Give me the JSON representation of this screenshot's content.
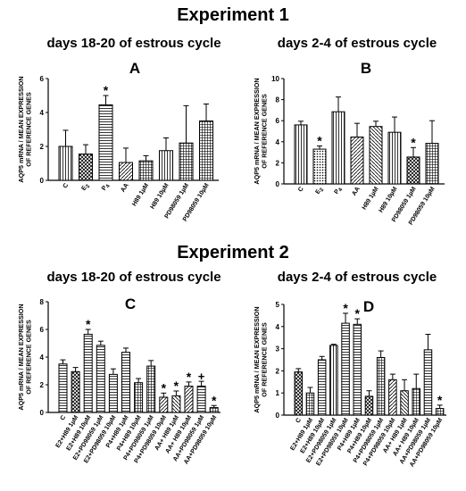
{
  "experiments": [
    {
      "title": "Experiment 1"
    },
    {
      "title": "Experiment 2"
    }
  ],
  "colors": {
    "bar_fill": "#ffffff",
    "bar_stroke": "#000000",
    "axis": "#000000"
  },
  "chart_data": [
    {
      "type": "bar",
      "panel": "A",
      "title": "days 18-20 of estrous cycle",
      "ylabel": "AQP5 mRNA / MEAN EXPRESSION OF REFERENCE GENES",
      "xlabel": "",
      "ylim": [
        0,
        6
      ],
      "yticks": [
        0,
        2,
        4,
        6
      ],
      "categories": [
        "C",
        "E2",
        "P4",
        "AA",
        "H89 1µM",
        "H89 10µM",
        "PD98059 1µM",
        "PD98059 10µM"
      ],
      "values": [
        2.0,
        1.55,
        4.45,
        1.05,
        1.15,
        1.75,
        2.2,
        3.5
      ],
      "errors": [
        0.95,
        0.55,
        0.55,
        0.85,
        0.3,
        0.75,
        2.2,
        1.0
      ],
      "annotations": [
        "",
        "",
        "*",
        "",
        "",
        "",
        "",
        ""
      ],
      "patterns": [
        "vlines",
        "cross",
        "hlines",
        "ldiag",
        "grid",
        "vlines",
        "grid",
        "grid"
      ]
    },
    {
      "type": "bar",
      "panel": "B",
      "title": "days 2-4 of estrous cycle",
      "ylabel": "AQP5 mRNA / MEAN EXPRESSION OF REFERENCE GENES",
      "xlabel": "",
      "ylim": [
        0,
        10
      ],
      "yticks": [
        0,
        2,
        4,
        6,
        8,
        10
      ],
      "categories": [
        "C",
        "E2",
        "P4",
        "AA",
        "H89 1µM",
        "H89 10µM",
        "PD98059 1µM",
        "PD98059 10µM"
      ],
      "values": [
        5.6,
        3.3,
        6.85,
        4.45,
        5.45,
        4.9,
        2.55,
        3.85
      ],
      "errors": [
        0.35,
        0.3,
        1.4,
        1.3,
        0.5,
        1.45,
        0.9,
        2.15
      ],
      "annotations": [
        "",
        "*",
        "",
        "",
        "",
        "",
        "*",
        ""
      ],
      "patterns": [
        "vlines",
        "dots",
        "vlines",
        "ldiag",
        "rdiag",
        "vlines",
        "cross",
        "grid"
      ]
    },
    {
      "type": "bar",
      "panel": "C",
      "title": "days 18-20 of estrous cycle",
      "ylabel": "AQP5 mRNA / MEAN EXPRESSION OF REFERENCE GENES",
      "xlabel": "",
      "ylim": [
        0,
        8
      ],
      "yticks": [
        0,
        2,
        4,
        6,
        8
      ],
      "categories": [
        "C",
        "E2+H89 1µM",
        "E2+H89 10µM",
        "E2+PD98059 1µM",
        "E2+PD98059 10µM",
        "P4+H89 1µM",
        "P4+H89 10µM",
        "P4+PD98059 1µM",
        "P4+PD98059 10µM",
        "AA+ H89 1µM",
        "AA+ H89 10µM",
        "AA+PD98059 1µM",
        "AA+PD98059 10µM"
      ],
      "values": [
        3.5,
        2.95,
        5.65,
        4.85,
        2.75,
        4.35,
        2.15,
        3.35,
        1.1,
        1.2,
        1.9,
        1.9,
        0.35
      ],
      "errors": [
        0.3,
        0.3,
        0.35,
        0.3,
        0.4,
        0.3,
        0.3,
        0.4,
        0.3,
        0.35,
        0.3,
        0.35,
        0.15
      ],
      "annotations": [
        "",
        "",
        "*",
        "",
        "",
        "",
        "",
        "",
        "*",
        "*",
        "*",
        "+",
        "*"
      ],
      "patterns": [
        "hlines",
        "cross",
        "hlines",
        "hlines",
        "hlines",
        "hlines",
        "grid",
        "grid",
        "ldiag",
        "rdiag",
        "ldiag",
        "hlines",
        "grid"
      ]
    },
    {
      "type": "bar",
      "panel": "D",
      "title": "days 2-4 of estrous cycle",
      "ylabel": "AQP5 mRNA / MEAN EXPRESSION OF REFERENCE GENES",
      "xlabel": "",
      "ylim": [
        0,
        5
      ],
      "yticks": [
        0,
        1,
        2,
        3,
        4,
        5
      ],
      "categories": [
        "C",
        "E2+H89 1µM",
        "E2+H89 10µM",
        "E2+PD98059 1µM",
        "E2+PD98059 10µM",
        "P4+H89 1µM",
        "P4+H89 10µM",
        "P4+PD98059 1µM",
        "P4+PD98059 10µM",
        "AA+ H89 1µM",
        "AA+ H89 10µM",
        "AA+PD98059 1µM",
        "AA+PD98059 10µM"
      ],
      "values": [
        1.95,
        1.0,
        2.5,
        3.15,
        4.15,
        4.1,
        0.85,
        2.6,
        1.6,
        1.1,
        1.2,
        2.95,
        0.3
      ],
      "errors": [
        0.15,
        0.25,
        0.15,
        0.05,
        0.45,
        0.25,
        0.25,
        0.3,
        0.25,
        0.5,
        0.65,
        0.7,
        0.15
      ],
      "annotations": [
        "",
        "",
        "",
        "",
        "*",
        "*",
        "",
        "",
        "",
        "",
        "",
        "",
        "*"
      ],
      "patterns": [
        "cross",
        "grid",
        "hlines",
        "vlines",
        "hlines",
        "hlines",
        "cross",
        "grid",
        "ldiag",
        "rdiag",
        "grid",
        "hlines",
        "grid"
      ]
    }
  ]
}
